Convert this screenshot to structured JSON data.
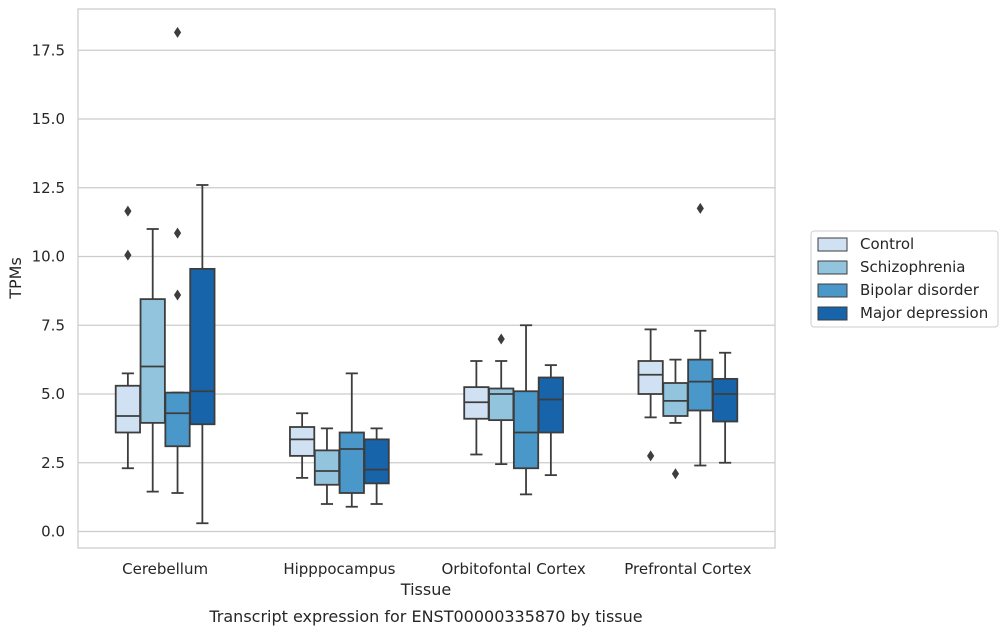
{
  "caption": "Transcript expression for ENST00000335870 by tissue",
  "chart_data": {
    "type": "boxplot",
    "xlabel": "Tissue",
    "ylabel": "TPMs",
    "ylim": [
      -0.6,
      19.0
    ],
    "yticks": [
      "0.0",
      "2.5",
      "5.0",
      "7.5",
      "10.0",
      "12.5",
      "15.0",
      "17.5"
    ],
    "grid": true,
    "legend_position": "right",
    "categories": [
      "Cerebellum",
      "Hipppocampus",
      "Orbitofontal Cortex",
      "Prefrontal Cortex"
    ],
    "series": [
      {
        "name": "Control",
        "color": "#cfe1f2",
        "boxes": [
          {
            "whislo": 2.3,
            "q1": 3.6,
            "med": 4.2,
            "q3": 5.3,
            "whishi": 5.75,
            "fliers": [
              11.65,
              10.05
            ]
          },
          {
            "whislo": 1.95,
            "q1": 2.75,
            "med": 3.35,
            "q3": 3.8,
            "whishi": 4.3,
            "fliers": []
          },
          {
            "whislo": 2.8,
            "q1": 4.1,
            "med": 4.7,
            "q3": 5.25,
            "whishi": 6.2,
            "fliers": []
          },
          {
            "whislo": 4.15,
            "q1": 5.0,
            "med": 5.7,
            "q3": 6.2,
            "whishi": 7.35,
            "fliers": [
              2.75
            ]
          }
        ]
      },
      {
        "name": "Schizophrenia",
        "color": "#93c4de",
        "boxes": [
          {
            "whislo": 1.45,
            "q1": 3.95,
            "med": 6.0,
            "q3": 8.45,
            "whishi": 11.0,
            "fliers": []
          },
          {
            "whislo": 1.0,
            "q1": 1.7,
            "med": 2.2,
            "q3": 2.95,
            "whishi": 3.75,
            "fliers": []
          },
          {
            "whislo": 2.45,
            "q1": 4.05,
            "med": 5.0,
            "q3": 5.2,
            "whishi": 6.2,
            "fliers": [
              7.0
            ]
          },
          {
            "whislo": 3.95,
            "q1": 4.2,
            "med": 4.75,
            "q3": 5.4,
            "whishi": 6.25,
            "fliers": [
              2.1
            ]
          }
        ]
      },
      {
        "name": "Bipolar disorder",
        "color": "#4a98c9",
        "boxes": [
          {
            "whislo": 1.4,
            "q1": 3.1,
            "med": 4.3,
            "q3": 5.05,
            "whishi": 5.05,
            "fliers": [
              18.15,
              10.85,
              8.6
            ]
          },
          {
            "whislo": 0.9,
            "q1": 1.4,
            "med": 3.0,
            "q3": 3.6,
            "whishi": 5.75,
            "fliers": []
          },
          {
            "whislo": 1.35,
            "q1": 2.3,
            "med": 3.6,
            "q3": 5.1,
            "whishi": 7.5,
            "fliers": []
          },
          {
            "whislo": 2.4,
            "q1": 4.4,
            "med": 5.45,
            "q3": 6.25,
            "whishi": 7.3,
            "fliers": [
              11.75
            ]
          }
        ]
      },
      {
        "name": "Major depression",
        "color": "#1764ab",
        "boxes": [
          {
            "whislo": 0.3,
            "q1": 3.9,
            "med": 5.1,
            "q3": 9.55,
            "whishi": 12.6,
            "fliers": []
          },
          {
            "whislo": 1.0,
            "q1": 1.75,
            "med": 2.25,
            "q3": 3.35,
            "whishi": 3.75,
            "fliers": []
          },
          {
            "whislo": 2.05,
            "q1": 3.6,
            "med": 4.8,
            "q3": 5.6,
            "whishi": 6.05,
            "fliers": []
          },
          {
            "whislo": 2.5,
            "q1": 4.0,
            "med": 5.0,
            "q3": 5.55,
            "whishi": 6.5,
            "fliers": []
          }
        ]
      }
    ]
  }
}
